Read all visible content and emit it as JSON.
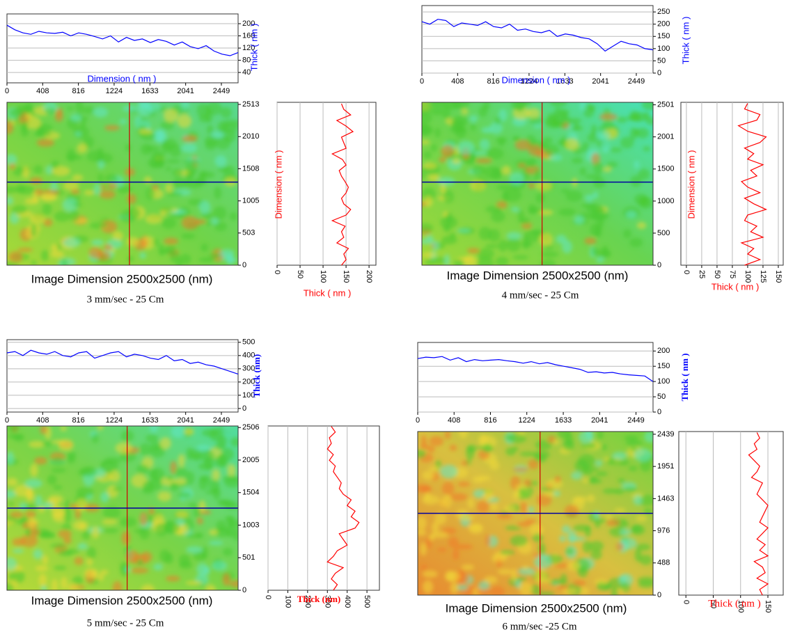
{
  "chart_data": [
    {
      "type": "afm-profile",
      "image_label": "Image Dimension 2500x2500 (nm)",
      "caption": "3 mm/sec - 25 Cm",
      "profile_x": {
        "x_label": "Dimension ( nm )",
        "y_label": "Thick ( nm )",
        "color": "#0000ff",
        "grid": true,
        "x": [
          0,
          91,
          182,
          273,
          364,
          455,
          546,
          637,
          728,
          819,
          910,
          1001,
          1092,
          1183,
          1274,
          1365,
          1456,
          1547,
          1638,
          1729,
          1820,
          1911,
          2002,
          2093,
          2184,
          2275,
          2366,
          2457,
          2548,
          2639
        ],
        "values": [
          195,
          180,
          170,
          165,
          175,
          170,
          168,
          172,
          160,
          170,
          165,
          158,
          150,
          160,
          140,
          155,
          145,
          150,
          138,
          148,
          142,
          130,
          140,
          125,
          118,
          128,
          110,
          100,
          95,
          105
        ],
        "xlim": [
          0,
          2640
        ],
        "xticks": [
          0,
          408,
          816,
          1224,
          1633,
          2041,
          2449
        ],
        "ylim": [
          6,
          232
        ],
        "yticks": [
          40,
          80,
          120,
          160,
          200
        ]
      },
      "image": {
        "ylim": [
          0,
          2546
        ],
        "yticks": [
          0,
          503,
          1005,
          1508,
          2010,
          2513
        ]
      },
      "profile_y": {
        "y_label": "Dimension ( nm )",
        "x_label": "Thick ( nm )",
        "color": "#ff0000",
        "grid": true,
        "y": [
          0,
          87,
          174,
          261,
          348,
          435,
          522,
          609,
          696,
          783,
          870,
          957,
          1044,
          1131,
          1218,
          1305,
          1392,
          1479,
          1566,
          1653,
          1740,
          1827,
          1914,
          2001,
          2088,
          2175,
          2262,
          2349,
          2436,
          2523
        ],
        "values": [
          140,
          150,
          145,
          155,
          130,
          145,
          140,
          148,
          120,
          150,
          160,
          145,
          140,
          150,
          155,
          148,
          140,
          135,
          150,
          142,
          120,
          150,
          145,
          140,
          165,
          150,
          130,
          160,
          145,
          140
        ],
        "xlim": [
          0,
          215
        ],
        "xticks": [
          0,
          50,
          100,
          150,
          200
        ]
      }
    },
    {
      "type": "afm-profile",
      "image_label": "Image Dimension 2500x2500 (nm)",
      "caption": "4 mm/sec - 25 Cm",
      "profile_x": {
        "x_label": "Dimension ( nm )",
        "y_label": "Thick ( nm )",
        "color": "#0000ff",
        "grid": true,
        "x": [
          0,
          91,
          182,
          273,
          364,
          455,
          546,
          637,
          728,
          819,
          910,
          1001,
          1092,
          1183,
          1274,
          1365,
          1456,
          1547,
          1638,
          1729,
          1820,
          1911,
          2002,
          2093,
          2184,
          2275,
          2366,
          2457,
          2548,
          2639
        ],
        "values": [
          210,
          200,
          220,
          215,
          190,
          205,
          200,
          195,
          210,
          190,
          185,
          200,
          175,
          180,
          170,
          165,
          175,
          150,
          160,
          155,
          145,
          140,
          120,
          90,
          110,
          130,
          120,
          115,
          100,
          95
        ],
        "xlim": [
          0,
          2640
        ],
        "xticks": [
          0,
          408,
          816,
          1224,
          1633,
          2041,
          2449
        ],
        "ylim": [
          0,
          276
        ],
        "yticks": [
          0,
          50,
          100,
          150,
          200,
          250
        ]
      },
      "image": {
        "ylim": [
          0,
          2540
        ],
        "yticks": [
          0,
          500,
          1000,
          1500,
          2001,
          2501
        ]
      },
      "profile_y": {
        "y_label": "Dimension ( nm )",
        "x_label": "Thick ( nm )",
        "color": "#ff0000",
        "grid": true,
        "y": [
          0,
          87,
          174,
          261,
          348,
          435,
          522,
          609,
          696,
          783,
          870,
          957,
          1044,
          1131,
          1218,
          1305,
          1392,
          1479,
          1566,
          1653,
          1740,
          1827,
          1914,
          2001,
          2088,
          2175,
          2262,
          2349,
          2436,
          2523
        ],
        "values": [
          95,
          120,
          100,
          110,
          90,
          125,
          105,
          115,
          95,
          100,
          130,
          110,
          95,
          120,
          100,
          90,
          115,
          105,
          125,
          100,
          110,
          95,
          120,
          130,
          100,
          85,
          115,
          120,
          95,
          100
        ],
        "xlim": [
          -9,
          158
        ],
        "xticks": [
          0,
          25,
          50,
          75,
          100,
          125,
          150
        ]
      }
    },
    {
      "type": "afm-profile",
      "image_label": "Image Dimension 2500x2500 (nm)",
      "caption": "5 mm/sec - 25 Cm",
      "profile_x": {
        "y_label": "Thick (nm)",
        "color": "#0000ff",
        "grid": true,
        "x": [
          0,
          91,
          182,
          273,
          364,
          455,
          546,
          637,
          728,
          819,
          910,
          1001,
          1092,
          1183,
          1274,
          1365,
          1456,
          1547,
          1638,
          1729,
          1820,
          1911,
          2002,
          2093,
          2184,
          2275,
          2366,
          2457,
          2548,
          2639
        ],
        "values": [
          420,
          430,
          400,
          440,
          420,
          410,
          430,
          400,
          390,
          420,
          430,
          380,
          400,
          420,
          430,
          390,
          410,
          400,
          380,
          370,
          400,
          360,
          370,
          340,
          350,
          330,
          320,
          300,
          280,
          260
        ],
        "xlim": [
          0,
          2640
        ],
        "xticks": [
          0,
          408,
          816,
          1224,
          1633,
          2041,
          2449
        ],
        "ylim": [
          -27,
          520
        ],
        "yticks": [
          0,
          100,
          200,
          300,
          400,
          500
        ]
      },
      "image": {
        "ylim": [
          0,
          2530
        ],
        "yticks": [
          0,
          501,
          1003,
          1504,
          2005,
          2506
        ]
      },
      "profile_y": {
        "x_label": "Thick (nm)",
        "color": "#ff0000",
        "grid": true,
        "y": [
          0,
          87,
          174,
          261,
          348,
          435,
          522,
          609,
          696,
          783,
          870,
          957,
          1044,
          1131,
          1218,
          1305,
          1392,
          1479,
          1566,
          1653,
          1740,
          1827,
          1914,
          2001,
          2088,
          2175,
          2262,
          2349,
          2436,
          2523
        ],
        "values": [
          330,
          350,
          320,
          340,
          380,
          300,
          330,
          350,
          400,
          380,
          360,
          440,
          460,
          420,
          440,
          400,
          420,
          380,
          360,
          370,
          350,
          330,
          340,
          310,
          330,
          300,
          320,
          310,
          340,
          320
        ],
        "xlim": [
          0,
          563
        ],
        "xticks": [
          0,
          100,
          200,
          300,
          400,
          500
        ]
      }
    },
    {
      "type": "afm-profile",
      "image_label": "Image Dimension 2500x2500 (nm)",
      "caption": "6 mm/sec -25 Cm",
      "profile_x": {
        "y_label": "Thick ( nm )",
        "color": "#0000ff",
        "grid": true,
        "x": [
          0,
          91,
          182,
          273,
          364,
          455,
          546,
          637,
          728,
          819,
          910,
          1001,
          1092,
          1183,
          1274,
          1365,
          1456,
          1547,
          1638,
          1729,
          1820,
          1911,
          2002,
          2093,
          2184,
          2275,
          2366,
          2457,
          2548,
          2639
        ],
        "values": [
          175,
          180,
          178,
          182,
          170,
          178,
          165,
          172,
          168,
          170,
          172,
          168,
          165,
          160,
          165,
          158,
          162,
          155,
          150,
          145,
          140,
          130,
          132,
          128,
          130,
          125,
          122,
          120,
          118,
          100
        ],
        "xlim": [
          0,
          2640
        ],
        "xticks": [
          0,
          408,
          816,
          1224,
          1633,
          2041,
          2449
        ],
        "ylim": [
          0,
          228
        ],
        "yticks": [
          0,
          50,
          100,
          150,
          200
        ]
      },
      "image": {
        "ylim": [
          0,
          2480
        ],
        "yticks": [
          0,
          488,
          976,
          1463,
          1951,
          2439
        ]
      },
      "profile_y": {
        "x_label": "Thick ( nm )",
        "color": "#ff0000",
        "grid": true,
        "y": [
          0,
          85,
          170,
          255,
          340,
          425,
          510,
          595,
          680,
          765,
          850,
          935,
          1020,
          1105,
          1190,
          1275,
          1360,
          1445,
          1530,
          1615,
          1700,
          1785,
          1870,
          1955,
          2040,
          2125,
          2210,
          2295,
          2380,
          2465
        ],
        "values": [
          140,
          135,
          150,
          130,
          145,
          140,
          125,
          150,
          135,
          145,
          130,
          140,
          150,
          135,
          140,
          145,
          150,
          140,
          130,
          135,
          140,
          120,
          130,
          135,
          125,
          115,
          130,
          125,
          135,
          130
        ],
        "xlim": [
          -13,
          178
        ],
        "xticks": [
          0,
          50,
          100,
          150
        ]
      }
    }
  ]
}
